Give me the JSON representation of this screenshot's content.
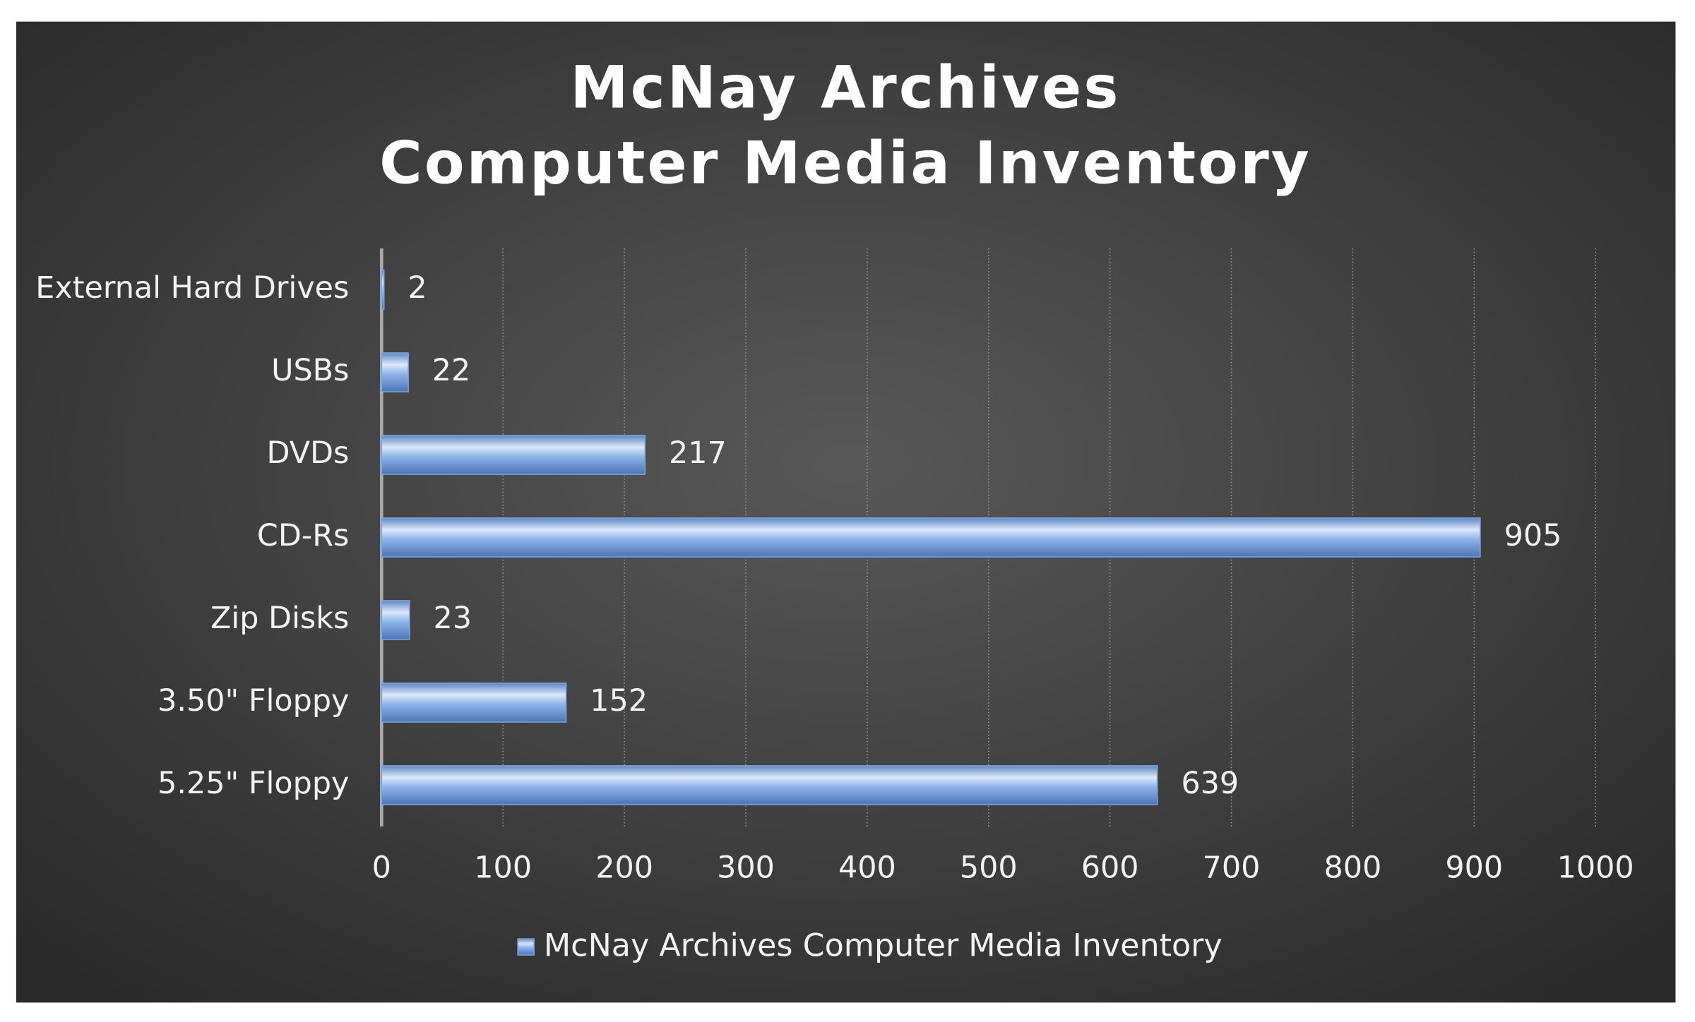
{
  "chart_data": {
    "type": "hbar",
    "title": [
      "McNay Archives",
      "Computer Media Inventory"
    ],
    "categories": [
      "External Hard Drives",
      "USBs",
      "DVDs",
      "CD-Rs",
      "Zip Disks",
      "3.50\" Floppy",
      "5.25\" Floppy"
    ],
    "series": [
      {
        "name": "McNay Archives Computer Media Inventory",
        "color": "#7ba7e0",
        "values": [
          2,
          22,
          217,
          905,
          23,
          152,
          639
        ]
      }
    ],
    "xlim": [
      0,
      1000
    ],
    "xticks": [
      0,
      100,
      200,
      300,
      400,
      500,
      600,
      700,
      800,
      900,
      1000
    ],
    "grid": true,
    "legend": "bottom"
  }
}
